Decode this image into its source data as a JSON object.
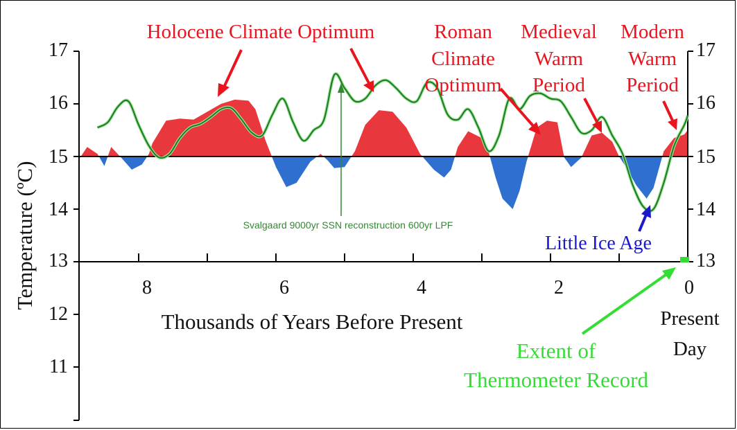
{
  "chart_data": {
    "type": "area",
    "xlabel": "Thousands of Years Before Present",
    "ylabel": "Temperature (ºC)",
    "xlim": [
      9.0,
      0.0
    ],
    "ylim": [
      10.0,
      17.0
    ],
    "x_ticks": [
      "8",
      "6",
      "4",
      "2",
      "0"
    ],
    "y_ticks_left": [
      "17",
      "16",
      "15",
      "14",
      "13",
      "12",
      "11"
    ],
    "y_ticks_right": [
      "17",
      "16",
      "15",
      "14",
      "13"
    ],
    "baseline": 15.0,
    "colors": {
      "above": "#e8383d",
      "below": "#2f6fd0",
      "series": "#1f7a1f",
      "series_outline": "#9be39b",
      "red_text": "#e8141e",
      "blue_text": "#1a1acc",
      "green_text": "#33dd33",
      "green_small": "#2e8b2e"
    },
    "series": [
      {
        "values_x": [
          9.0,
          8.9,
          8.75,
          8.6,
          8.5,
          8.4,
          8.25,
          8.1,
          7.95,
          7.85,
          7.8,
          7.6,
          7.4,
          7.2,
          7.0,
          6.8,
          6.6,
          6.4,
          6.3,
          6.15,
          6.0,
          5.85,
          5.7,
          5.5,
          5.35,
          5.25,
          5.15,
          5.0,
          4.85,
          4.7,
          4.5,
          4.3,
          4.1,
          3.9,
          3.7,
          3.55,
          3.45,
          3.35,
          3.2,
          3.0,
          2.9,
          2.8,
          2.7,
          2.55,
          2.45,
          2.35,
          2.2,
          2.05,
          1.9,
          1.8,
          1.7,
          1.55,
          1.4,
          1.25,
          1.1,
          1.0,
          0.9,
          0.75,
          0.6,
          0.5,
          0.35,
          0.2,
          0.05,
          0.0
        ],
        "values_y": [
          14.82,
          14.95,
          15.18,
          15.05,
          14.82,
          15.18,
          14.97,
          14.75,
          14.85,
          15.05,
          15.25,
          15.68,
          15.72,
          15.7,
          15.85,
          16.0,
          16.08,
          16.06,
          15.9,
          15.3,
          14.8,
          14.42,
          14.5,
          14.9,
          15.05,
          14.93,
          14.78,
          14.8,
          15.1,
          15.6,
          15.88,
          15.85,
          15.55,
          15.05,
          14.75,
          14.6,
          14.75,
          15.18,
          15.48,
          15.35,
          15.08,
          14.6,
          14.2,
          14.0,
          14.35,
          14.9,
          15.55,
          15.68,
          15.65,
          14.98,
          14.8,
          14.98,
          15.4,
          15.45,
          15.28,
          15.0,
          14.8,
          14.45,
          14.2,
          14.4,
          15.1,
          15.35,
          15.42,
          15.5
        ]
      },
      {
        "name": "Svalgaard 9000yr SSN reconstruction 600yr LPF",
        "values_x": [
          8.6,
          8.45,
          8.3,
          8.15,
          8.0,
          7.85,
          7.7,
          7.55,
          7.4,
          7.25,
          7.1,
          6.95,
          6.8,
          6.65,
          6.5,
          6.35,
          6.2,
          6.05,
          5.9,
          5.75,
          5.6,
          5.45,
          5.3,
          5.15,
          5.0,
          4.85,
          4.7,
          4.55,
          4.4,
          4.25,
          4.1,
          3.95,
          3.8,
          3.65,
          3.5,
          3.35,
          3.2,
          3.05,
          2.9,
          2.75,
          2.6,
          2.45,
          2.3,
          2.15,
          2.0,
          1.85,
          1.7,
          1.55,
          1.4,
          1.25,
          1.1,
          0.95,
          0.8,
          0.65,
          0.5,
          0.35,
          0.2,
          0.05,
          0.0
        ],
        "values_y": [
          15.55,
          15.65,
          15.95,
          16.05,
          15.6,
          15.2,
          14.98,
          15.05,
          15.35,
          15.55,
          15.62,
          15.75,
          15.9,
          15.92,
          15.7,
          15.45,
          15.4,
          15.8,
          16.1,
          15.65,
          15.3,
          15.5,
          15.7,
          16.55,
          16.3,
          16.05,
          16.1,
          16.35,
          16.45,
          16.3,
          16.1,
          16.05,
          16.4,
          16.3,
          15.8,
          15.7,
          15.9,
          15.55,
          15.1,
          15.4,
          16.1,
          15.9,
          16.15,
          16.2,
          16.1,
          16.05,
          15.75,
          15.45,
          15.5,
          15.75,
          15.4,
          15.05,
          14.45,
          14.05,
          14.0,
          14.5,
          15.2,
          15.6,
          15.78
        ]
      }
    ],
    "annotations": [
      {
        "text": "Holocene Climate Optimum",
        "color": "red"
      },
      {
        "text": "Roman",
        "color": "red"
      },
      {
        "text": "Climate",
        "color": "red"
      },
      {
        "text": "Optimum",
        "color": "red"
      },
      {
        "text": "Medieval",
        "color": "red"
      },
      {
        "text": "Warm",
        "color": "red"
      },
      {
        "text": "Period",
        "color": "red"
      },
      {
        "text": "Modern",
        "color": "red"
      },
      {
        "text": "Warm",
        "color": "red"
      },
      {
        "text": "Period",
        "color": "red"
      },
      {
        "text": "Little Ice Age",
        "color": "blue"
      },
      {
        "text": "Svalgaard 9000yr SSN reconstruction 600yr LPF",
        "color": "green"
      },
      {
        "text": "Present",
        "color": "black"
      },
      {
        "text": "Day",
        "color": "black"
      },
      {
        "text": "Extent of",
        "color": "green"
      },
      {
        "text": "Thermometer Record",
        "color": "green"
      }
    ]
  }
}
